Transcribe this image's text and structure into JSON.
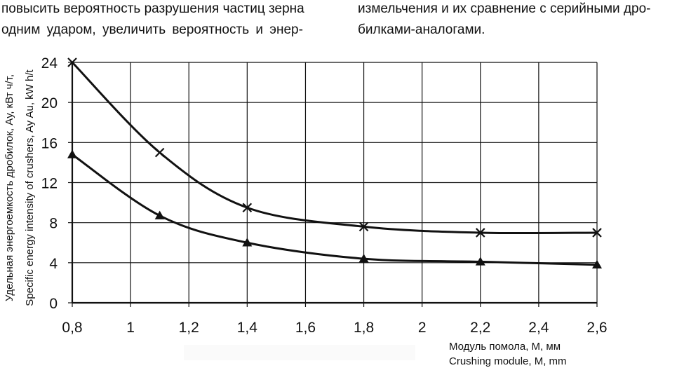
{
  "text": {
    "left_line1": "повысить вероятность разрушения частиц зерна",
    "left_line2": "одним ударом, увеличить вероятность и энер-",
    "right_line1": "измельчения и их сравнение с серийными дро-",
    "right_line2": "билками-аналогами."
  },
  "chart_data": {
    "type": "line",
    "xlim": [
      0.8,
      2.6
    ],
    "ylim": [
      0,
      24
    ],
    "x_ticks": [
      "0,8",
      "1",
      "1,2",
      "1,4",
      "1,6",
      "1,8",
      "2",
      "2,2",
      "2,4",
      "2,6"
    ],
    "y_ticks": [
      "0",
      "4",
      "8",
      "12",
      "16",
      "20",
      "24"
    ],
    "grid": true,
    "ylabel_ru": "Удельная энергоемкость дробилок, Aу, кВт ч/т,",
    "ylabel_en": "Specific energy intensity of crushers, Ay Au, kW h/t",
    "xlabel_ru": "Модуль помола, М, мм",
    "xlabel_en": "Crushing module, M, mm",
    "series": [
      {
        "marker": "cross",
        "x": [
          0.8,
          1.1,
          1.4,
          1.8,
          2.2,
          2.6
        ],
        "y": [
          24.0,
          15.0,
          9.5,
          7.6,
          7.0,
          7.0
        ]
      },
      {
        "marker": "triangle",
        "x": [
          0.8,
          1.1,
          1.4,
          1.8,
          2.2,
          2.6
        ],
        "y": [
          14.8,
          8.7,
          6.0,
          4.4,
          4.1,
          3.8
        ]
      }
    ]
  }
}
